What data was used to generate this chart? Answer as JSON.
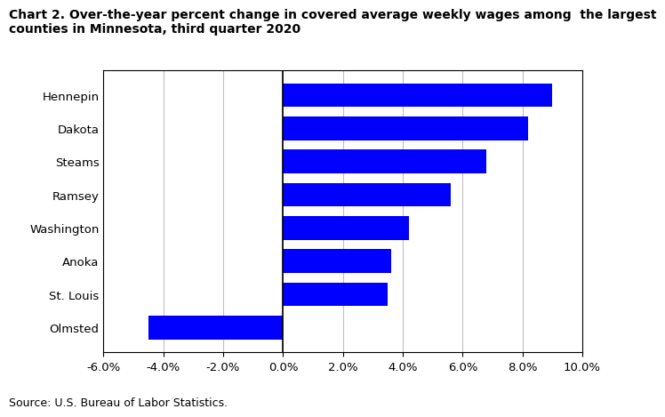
{
  "title_line1": "Chart 2. Over-the-year percent change in covered average weekly wages among  the largest",
  "title_line2": "counties in Minnesota, third quarter 2020",
  "categories": [
    "Hennepin",
    "Dakota",
    "Steams",
    "Ramsey",
    "Washington",
    "Anoka",
    "St. Louis",
    "Olmsted"
  ],
  "values": [
    9.0,
    8.2,
    6.8,
    5.6,
    4.2,
    3.6,
    3.5,
    -4.5
  ],
  "bar_color": "#0000FF",
  "xlim": [
    -6.0,
    10.0
  ],
  "xticks": [
    -6.0,
    -4.0,
    -2.0,
    0.0,
    2.0,
    4.0,
    6.0,
    8.0,
    10.0
  ],
  "source": "Source: U.S. Bureau of Labor Statistics.",
  "title_fontsize": 10.0,
  "tick_fontsize": 9.5,
  "source_fontsize": 9.0,
  "bar_height": 0.72
}
